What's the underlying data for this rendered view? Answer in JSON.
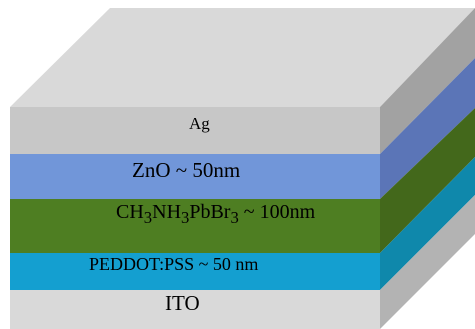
{
  "diagram": {
    "layers": [
      {
        "id": "ag",
        "label": "Ag",
        "colors": {
          "front": "#c7c7c7",
          "side": "#a2a2a2",
          "top": "#d9d9d9"
        }
      },
      {
        "id": "zno",
        "label_main": "ZnO ~ 50nm",
        "colors": {
          "front": "#7196d9",
          "side": "#5b75b7"
        }
      },
      {
        "id": "perovskite",
        "label_parts": [
          "CH",
          "3",
          "NH",
          "3",
          "PbBr",
          "3",
          " ~ 100nm"
        ],
        "colors": {
          "front": "#4e7e22",
          "side": "#43681b"
        }
      },
      {
        "id": "pedot",
        "label": "PEDDOT:PSS ~ 50 nm",
        "colors": {
          "front": "#149fd0",
          "side": "#0f88ab"
        }
      },
      {
        "id": "ito",
        "label": "ITO",
        "colors": {
          "front": "#d9d9d9",
          "side": "#b3b3b3"
        }
      }
    ]
  }
}
